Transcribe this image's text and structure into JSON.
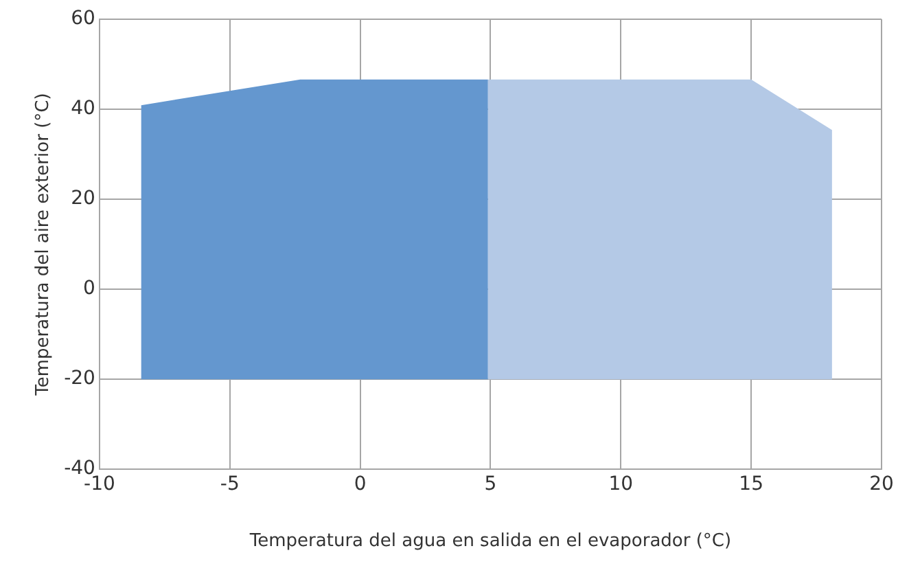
{
  "chart_data": {
    "type": "area",
    "xlabel": "Temperatura del agua en salida en el evaporador (°C)",
    "ylabel": "Temperatura del aire exterior (°C)",
    "series": [
      {
        "color": "#6497cf",
        "x": [
          -8.4,
          -8.4,
          -2.3,
          4.9,
          4.9
        ],
        "values": [
          -20,
          40.9,
          46.6,
          46.6,
          -20
        ]
      },
      {
        "color": "#b4c9e6",
        "x": [
          4.9,
          4.9,
          15,
          18.1,
          18.1
        ],
        "values": [
          -20,
          46.6,
          46.6,
          35.4,
          -20
        ]
      }
    ],
    "xlim": [
      -10,
      20
    ],
    "xticks": [
      -10,
      -5,
      0,
      5,
      10,
      15,
      20
    ],
    "ylim": [
      -40,
      60
    ],
    "yticks": [
      -40,
      -20,
      0,
      20,
      40,
      60
    ],
    "grid": true,
    "legend": false,
    "marker": "none"
  }
}
